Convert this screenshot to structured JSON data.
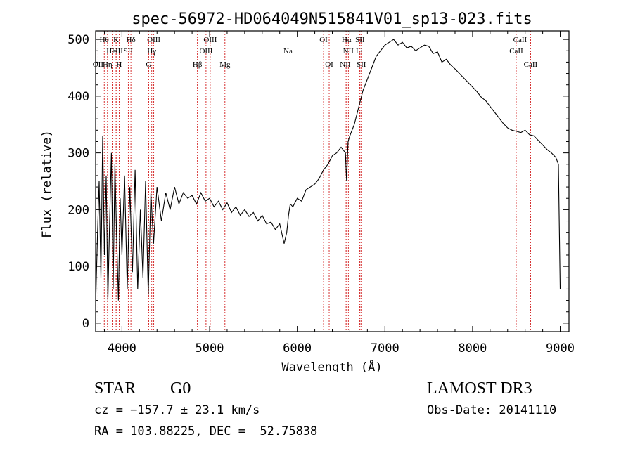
{
  "chart_data": {
    "type": "line",
    "title": "spec-56972-HD064049N515841V01_sp13-023.fits",
    "xlabel": "Wavelength (Å)",
    "ylabel": "Flux (relative)",
    "xlim": [
      3700,
      9100
    ],
    "ylim": [
      -15,
      515
    ],
    "xticks": [
      4000,
      5000,
      6000,
      7000,
      8000,
      9000
    ],
    "yticks": [
      0,
      100,
      200,
      300,
      400,
      500
    ],
    "grid": false,
    "spectrum": {
      "x": [
        3700,
        3720,
        3740,
        3760,
        3780,
        3800,
        3820,
        3840,
        3860,
        3880,
        3900,
        3920,
        3940,
        3960,
        3980,
        4000,
        4030,
        4060,
        4090,
        4120,
        4150,
        4180,
        4210,
        4240,
        4270,
        4300,
        4330,
        4360,
        4400,
        4450,
        4500,
        4550,
        4600,
        4650,
        4700,
        4750,
        4800,
        4850,
        4900,
        4950,
        5000,
        5050,
        5100,
        5150,
        5200,
        5250,
        5300,
        5350,
        5400,
        5450,
        5500,
        5550,
        5600,
        5650,
        5700,
        5750,
        5800,
        5850,
        5880,
        5900,
        5920,
        5950,
        6000,
        6050,
        6100,
        6150,
        6200,
        6250,
        6300,
        6350,
        6400,
        6450,
        6500,
        6550,
        6563,
        6580,
        6600,
        6650,
        6700,
        6750,
        6800,
        6850,
        6900,
        6950,
        7000,
        7050,
        7100,
        7150,
        7200,
        7250,
        7300,
        7350,
        7400,
        7450,
        7500,
        7550,
        7600,
        7650,
        7700,
        7750,
        7800,
        7850,
        7900,
        7950,
        8000,
        8050,
        8100,
        8150,
        8200,
        8250,
        8300,
        8350,
        8400,
        8450,
        8500,
        8550,
        8600,
        8650,
        8700,
        8750,
        8800,
        8850,
        8900,
        8950,
        8980,
        9000
      ],
      "y": [
        30,
        150,
        250,
        80,
        330,
        120,
        260,
        40,
        180,
        300,
        60,
        280,
        150,
        40,
        220,
        120,
        260,
        60,
        240,
        90,
        270,
        60,
        200,
        80,
        250,
        50,
        230,
        140,
        240,
        180,
        230,
        200,
        240,
        210,
        230,
        220,
        225,
        210,
        230,
        215,
        220,
        205,
        215,
        200,
        212,
        195,
        205,
        190,
        200,
        188,
        195,
        180,
        190,
        175,
        178,
        165,
        175,
        140,
        160,
        190,
        210,
        205,
        220,
        215,
        235,
        240,
        245,
        255,
        270,
        280,
        295,
        300,
        310,
        300,
        250,
        320,
        330,
        350,
        380,
        410,
        430,
        450,
        470,
        480,
        490,
        495,
        500,
        490,
        495,
        485,
        488,
        480,
        485,
        490,
        488,
        475,
        478,
        460,
        465,
        455,
        448,
        440,
        432,
        424,
        416,
        408,
        398,
        392,
        382,
        372,
        362,
        352,
        344,
        340,
        338,
        336,
        340,
        332,
        330,
        322,
        314,
        306,
        300,
        292,
        280,
        60
      ]
    },
    "lines": [
      {
        "name": "CaII",
        "x": 3934,
        "row": 1
      },
      {
        "name": "OII",
        "x": 3727,
        "row": 2
      },
      {
        "name": "Hθ",
        "x": 3798,
        "row": 0
      },
      {
        "name": "Hη",
        "x": 3835,
        "row": 2
      },
      {
        "name": "HeI",
        "x": 3889,
        "row": 1
      },
      {
        "name": "K",
        "x": 3934,
        "row": 0
      },
      {
        "name": "H",
        "x": 3968,
        "row": 2
      },
      {
        "name": "SII",
        "x": 4072,
        "row": 1
      },
      {
        "name": "Hδ",
        "x": 4102,
        "row": 0
      },
      {
        "name": "G",
        "x": 4305,
        "row": 2
      },
      {
        "name": "Hγ",
        "x": 4340,
        "row": 1
      },
      {
        "name": "OIII",
        "x": 4363,
        "row": 0
      },
      {
        "name": "Hβ",
        "x": 4861,
        "row": 2
      },
      {
        "name": "OIII",
        "x": 4959,
        "row": 1
      },
      {
        "name": "OIII",
        "x": 5007,
        "row": 0
      },
      {
        "name": "Mg",
        "x": 5175,
        "row": 2
      },
      {
        "name": "Na",
        "x": 5894,
        "row": 1
      },
      {
        "name": "OI",
        "x": 6300,
        "row": 0
      },
      {
        "name": "OI",
        "x": 6364,
        "row": 2
      },
      {
        "name": "NII",
        "x": 6548,
        "row": 2
      },
      {
        "name": "Hα",
        "x": 6563,
        "row": 0
      },
      {
        "name": "NII",
        "x": 6583,
        "row": 1
      },
      {
        "name": "SII",
        "x": 6716,
        "row": 0
      },
      {
        "name": "SII",
        "x": 6731,
        "row": 2
      },
      {
        "name": "Li",
        "x": 6708,
        "row": 1
      },
      {
        "name": "CaII",
        "x": 8498,
        "row": 1
      },
      {
        "name": "CaII",
        "x": 8542,
        "row": 0
      },
      {
        "name": "CaII",
        "x": 8662,
        "row": 2
      }
    ]
  },
  "footer": {
    "object_class": "STAR",
    "subclass": "G0",
    "survey": "LAMOST DR3",
    "redshift": "cz = −157.7 ± 23.1 km/s",
    "obs_date": "Obs-Date: 20141110",
    "coords": "RA = 103.88225, DEC =  52.75838"
  },
  "colors": {
    "spectrum": "#000000",
    "line_marker": "#cc0000",
    "axes": "#000000"
  }
}
